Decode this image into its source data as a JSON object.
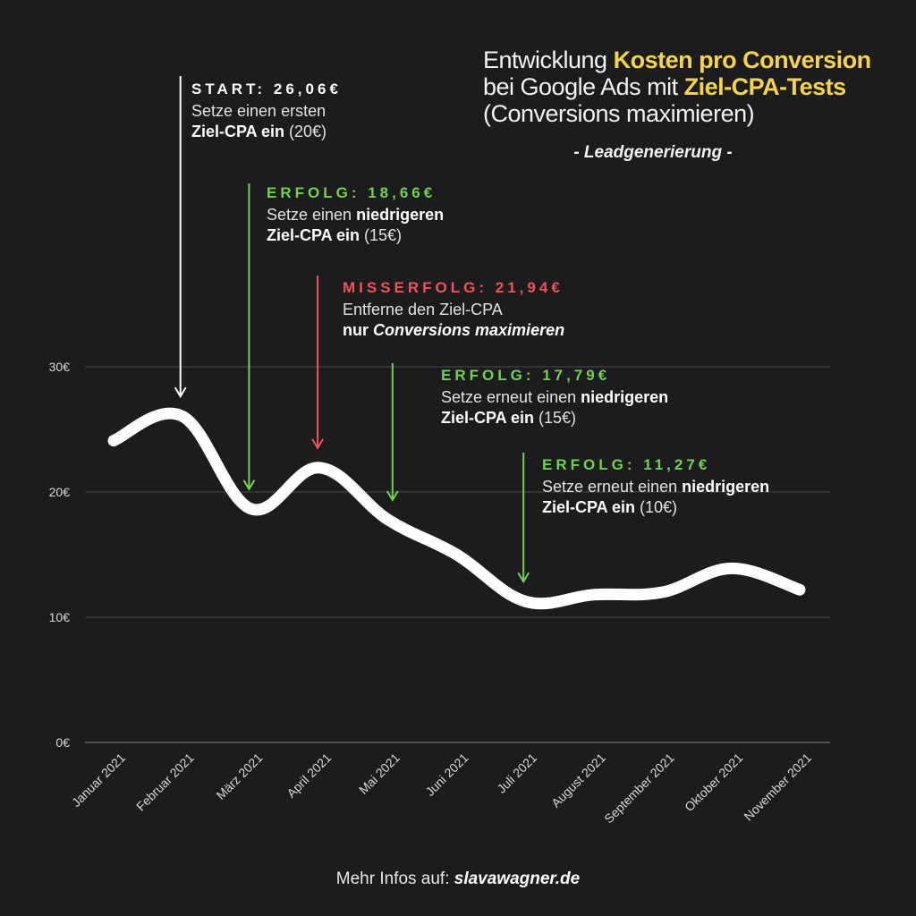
{
  "header": {
    "title_prefix": "Entwicklung ",
    "title_hl1": "Kosten pro Conversion",
    "title_mid": "bei Google Ads mit ",
    "title_hl2": "Ziel-CPA-Tests",
    "title_line3": "(Conversions maximieren)",
    "subtitle": "- Leadgenerierung -"
  },
  "annotations": {
    "start": {
      "head": "START: 26,06€",
      "line1": "Setze einen ersten",
      "bold": "Ziel-CPA ein",
      "rest": " (20€)"
    },
    "erfolg1": {
      "head": "ERFOLG: 18,66€",
      "line1_plain": "Setze einen ",
      "line1_bold": "niedrigeren",
      "bold": "Ziel-CPA ein",
      "rest": " (15€)"
    },
    "misserfolg": {
      "head": "MISSERFOLG: 21,94€",
      "line1": "Entferne den Ziel-CPA",
      "bold_plain": "nur ",
      "bold_italic": "Conversions maximieren"
    },
    "erfolg2": {
      "head": "ERFOLG: 17,79€",
      "line1_plain": "Setze erneut einen ",
      "line1_bold": "niedrigeren",
      "bold": "Ziel-CPA ein",
      "rest": " (15€)"
    },
    "erfolg3": {
      "head": "ERFOLG: 11,27€",
      "line1_plain": "Setze erneut einen ",
      "line1_bold": "niedrigeren",
      "bold": "Ziel-CPA ein",
      "rest": " (10€)"
    }
  },
  "footer": {
    "prefix": "Mehr Infos auf: ",
    "link": "slavawagner.de"
  },
  "colors": {
    "background": "#1c1b1d",
    "line": "#ffffff",
    "highlight": "#f5d547",
    "success": "#72d24f",
    "failure": "#ee5454",
    "grid": "#4a4a4c"
  },
  "chart_data": {
    "type": "line",
    "categories": [
      "Januar 2021",
      "Februar 2021",
      "März 2021",
      "April 2021",
      "Mai 2021",
      "Juni 2021",
      "Juli 2021",
      "August 2021",
      "September 2021",
      "Oktober 2021",
      "November 2021"
    ],
    "series": [
      {
        "values": [
          24.1,
          26.06,
          18.66,
          21.94,
          17.79,
          15.0,
          11.27,
          11.8,
          12.0,
          13.9,
          12.2
        ]
      }
    ],
    "ylim": [
      0,
      30
    ],
    "yticks": [
      "0€",
      "10€",
      "20€",
      "30€"
    ],
    "grid": true,
    "arrows": [
      {
        "category": "Februar 2021",
        "color": "white"
      },
      {
        "category": "März 2021",
        "color": "green"
      },
      {
        "category": "April 2021",
        "color": "red"
      },
      {
        "category": "Mai 2021",
        "color": "green"
      },
      {
        "category": "Juli 2021",
        "color": "green"
      }
    ]
  }
}
